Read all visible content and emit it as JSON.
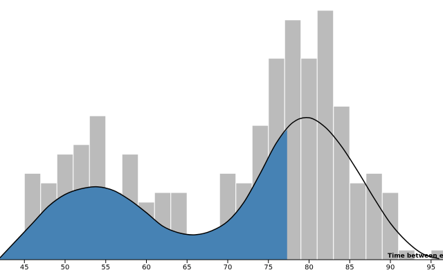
{
  "chart_data": {
    "type": "bar",
    "xlabel": "Time between eruptions",
    "ylabel": "",
    "title": "",
    "xlim": [
      42,
      96
    ],
    "bin_width": 2,
    "bins": [
      {
        "x0": 43,
        "count": 1
      },
      {
        "x0": 45,
        "count": 9
      },
      {
        "x0": 47,
        "count": 8
      },
      {
        "x0": 49,
        "count": 11
      },
      {
        "x0": 51,
        "count": 12
      },
      {
        "x0": 53,
        "count": 15
      },
      {
        "x0": 55,
        "count": 7
      },
      {
        "x0": 57,
        "count": 11
      },
      {
        "x0": 59,
        "count": 6
      },
      {
        "x0": 61,
        "count": 7
      },
      {
        "x0": 63,
        "count": 7
      },
      {
        "x0": 65,
        "count": 1
      },
      {
        "x0": 67,
        "count": 0
      },
      {
        "x0": 69,
        "count": 9
      },
      {
        "x0": 71,
        "count": 8
      },
      {
        "x0": 73,
        "count": 14
      },
      {
        "x0": 75,
        "count": 21
      },
      {
        "x0": 77,
        "count": 25
      },
      {
        "x0": 79,
        "count": 21
      },
      {
        "x0": 81,
        "count": 26
      },
      {
        "x0": 83,
        "count": 16
      },
      {
        "x0": 85,
        "count": 8
      },
      {
        "x0": 87,
        "count": 9
      },
      {
        "x0": 89,
        "count": 7
      },
      {
        "x0": 91,
        "count": 1
      },
      {
        "x0": 93,
        "count": 0
      },
      {
        "x0": 95,
        "count": 1
      }
    ],
    "x_ticks": [
      45,
      50,
      55,
      60,
      65,
      70,
      75,
      80,
      85,
      90,
      95
    ],
    "density_curve": {
      "x": [
        42,
        44,
        46,
        48,
        50,
        52,
        54,
        56,
        58,
        60,
        62,
        64,
        66,
        68,
        70,
        72,
        74,
        76,
        78,
        80,
        82,
        84,
        86,
        88,
        90,
        92,
        94,
        96
      ],
      "y": [
        0.2,
        2.0,
        3.8,
        5.6,
        6.8,
        7.4,
        7.6,
        7.2,
        6.2,
        4.9,
        3.5,
        2.8,
        2.6,
        3.0,
        4.0,
        6.0,
        9.0,
        12.2,
        14.3,
        14.8,
        13.8,
        11.8,
        9.2,
        6.4,
        3.8,
        1.9,
        0.6,
        0.1
      ]
    },
    "highlight_until": 77.3,
    "colors": {
      "bars": "#bbbbbb",
      "highlight": "#4682b4",
      "curve": "#000000"
    }
  }
}
